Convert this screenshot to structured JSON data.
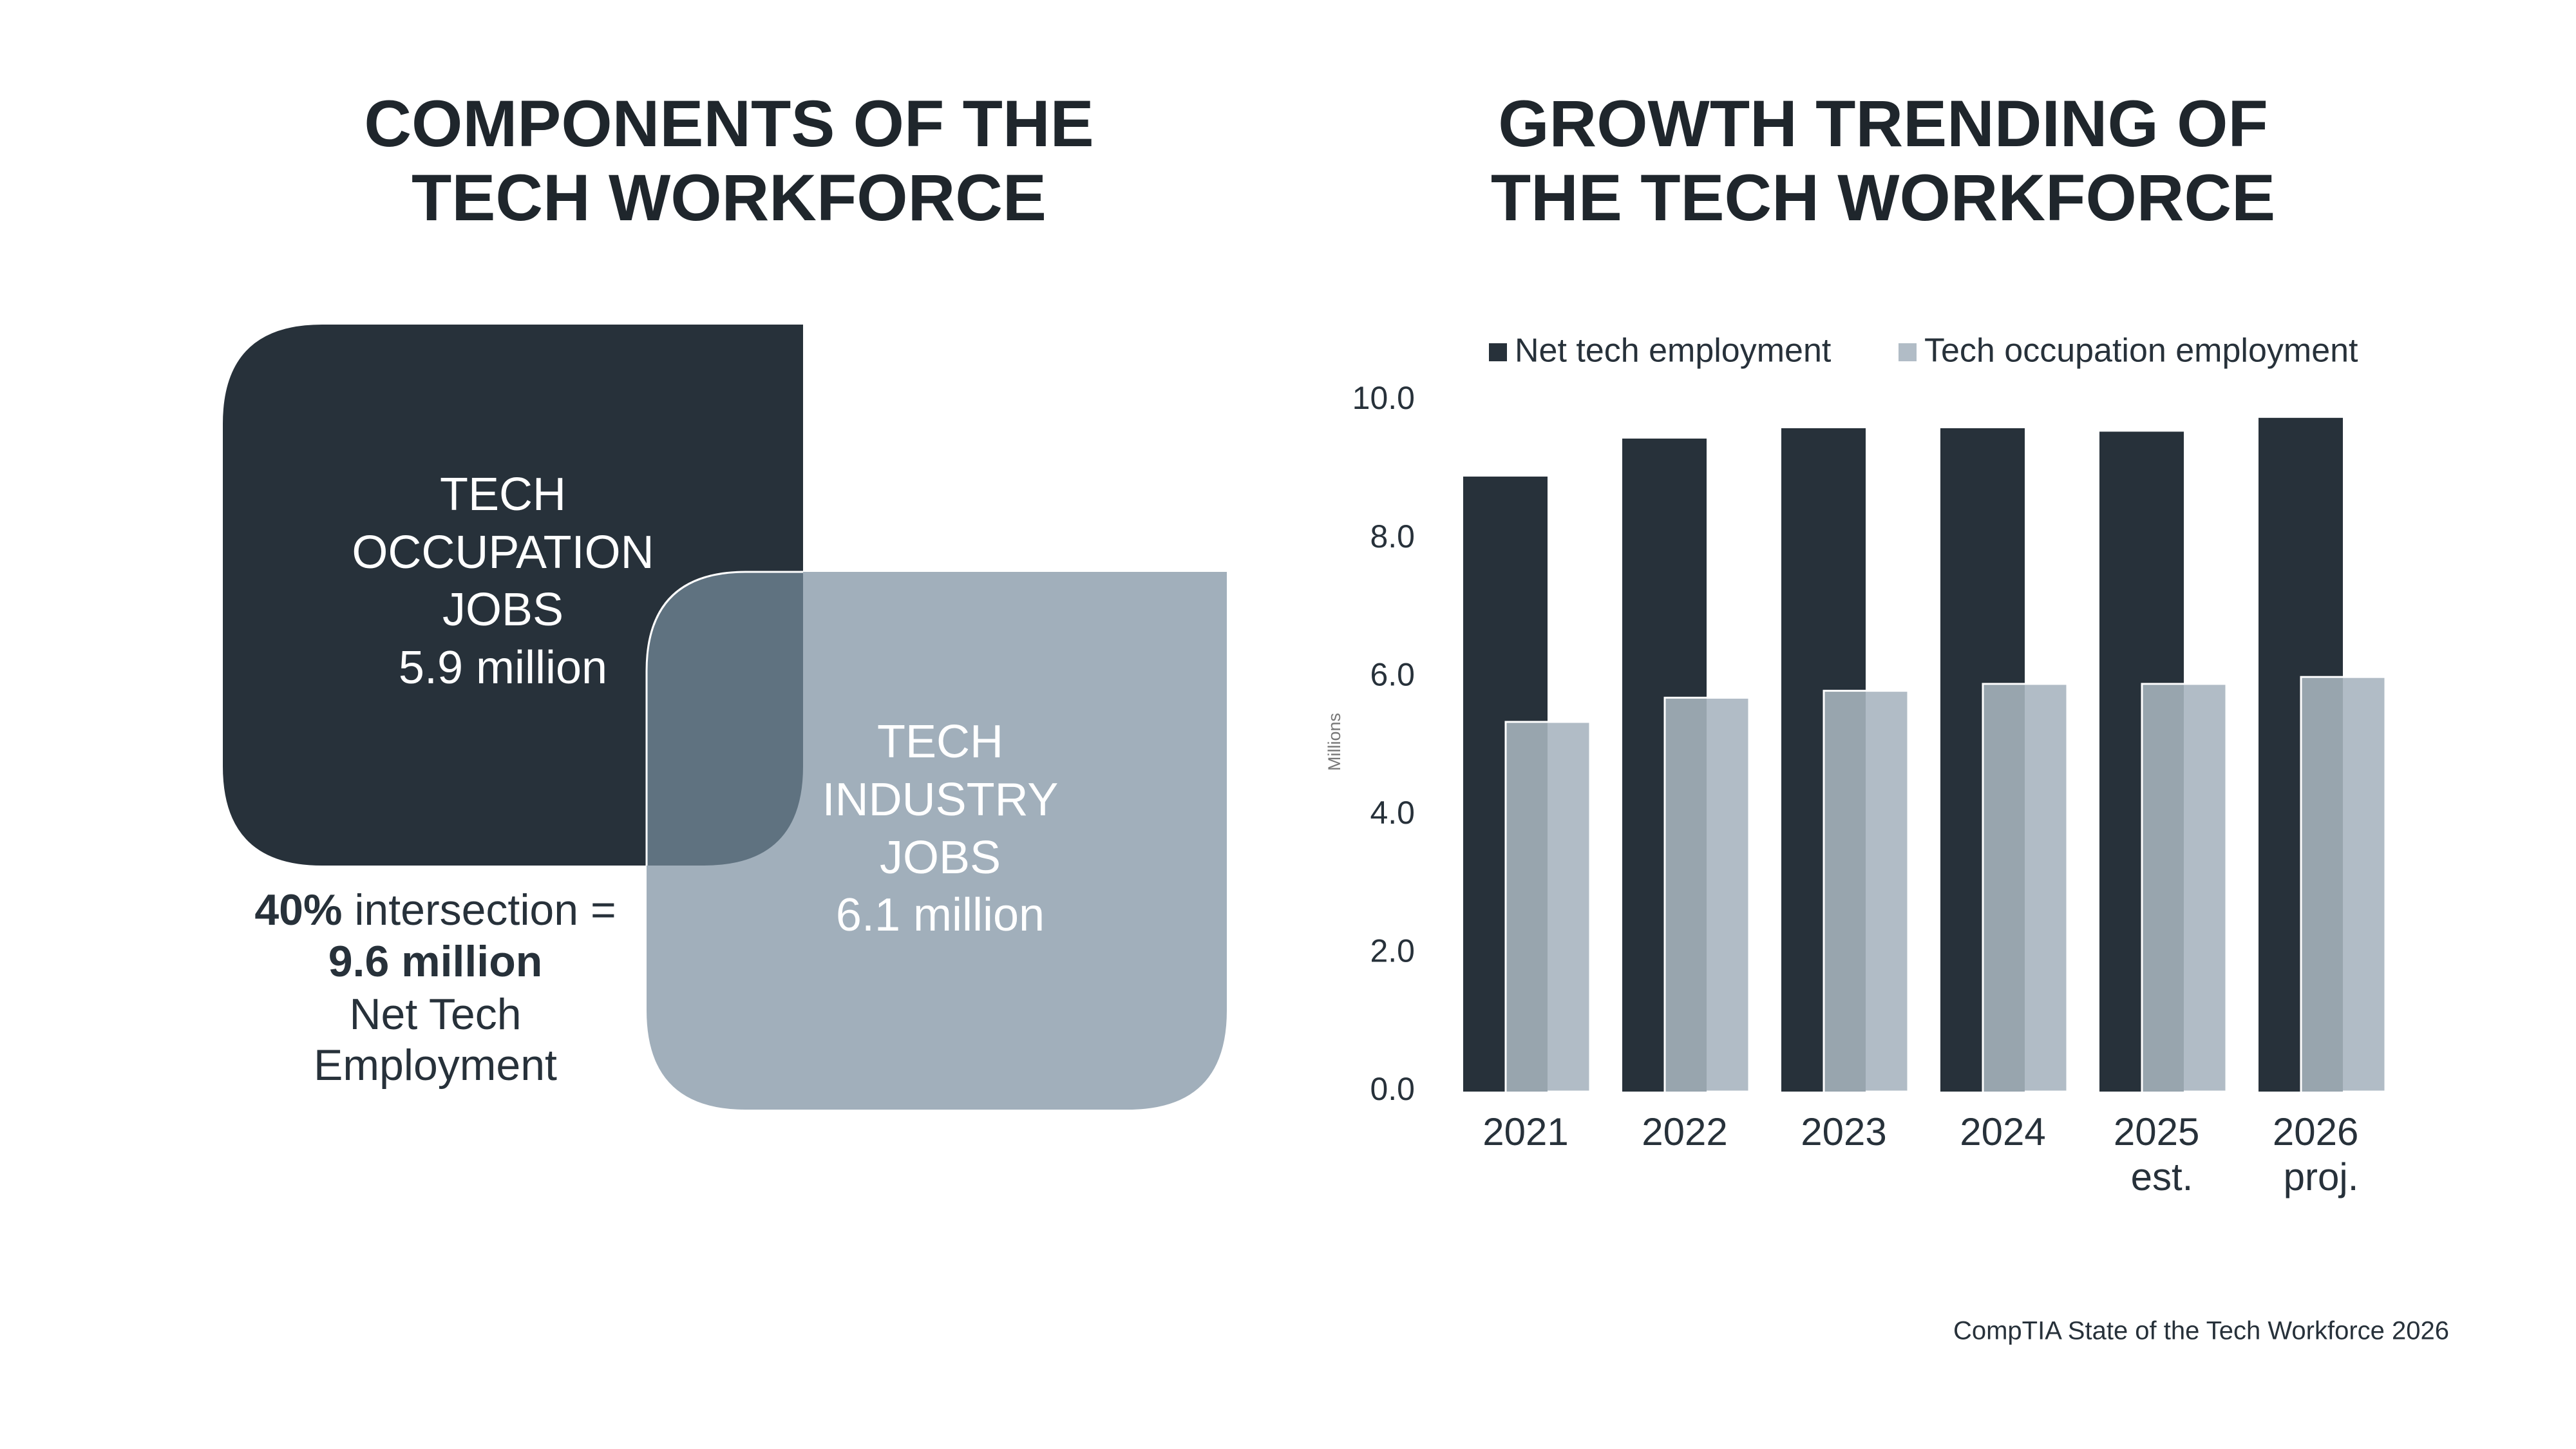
{
  "components": {
    "title_lines": [
      "COMPONENTS OF THE",
      "TECH WORKFORCE"
    ],
    "occupation": {
      "lines": [
        "TECH",
        "OCCUPATION",
        "JOBS",
        "5.9 million"
      ]
    },
    "industry": {
      "lines": [
        "TECH",
        "INDUSTRY",
        "JOBS",
        "6.1 million"
      ]
    },
    "intersection": {
      "percent": "40%",
      "text": "intersection =",
      "total": "9.6 million",
      "lines": [
        "Net Tech",
        "Employment"
      ]
    }
  },
  "chart_data": {
    "type": "bar",
    "title_lines": [
      "GROWTH TRENDING OF",
      "THE TECH WORKFORCE"
    ],
    "y_label": "Millions",
    "categories": [
      "2021",
      "2022",
      "2023",
      "2024",
      "2025 est.",
      "2026 proj."
    ],
    "series": [
      {
        "name": "Net tech employment",
        "color": "#27313a",
        "values": [
          8.9,
          9.45,
          9.6,
          9.6,
          9.55,
          9.75
        ]
      },
      {
        "name": "Tech occupation employment",
        "color": "#b1bcc6",
        "values": [
          5.35,
          5.7,
          5.8,
          5.9,
          5.9,
          6.0
        ]
      }
    ],
    "ylim": [
      0,
      10
    ],
    "yticks": [
      {
        "value": 0,
        "label": "0.0"
      },
      {
        "value": 2,
        "label": "2.0"
      },
      {
        "value": 4,
        "label": "4.0"
      },
      {
        "value": 6,
        "label": "6.0"
      },
      {
        "value": 8,
        "label": "8.0"
      },
      {
        "value": 10,
        "label": "10.0"
      }
    ],
    "grid": false,
    "legend": "top"
  },
  "source": "CompTIA State of the Tech Workforce 2026"
}
